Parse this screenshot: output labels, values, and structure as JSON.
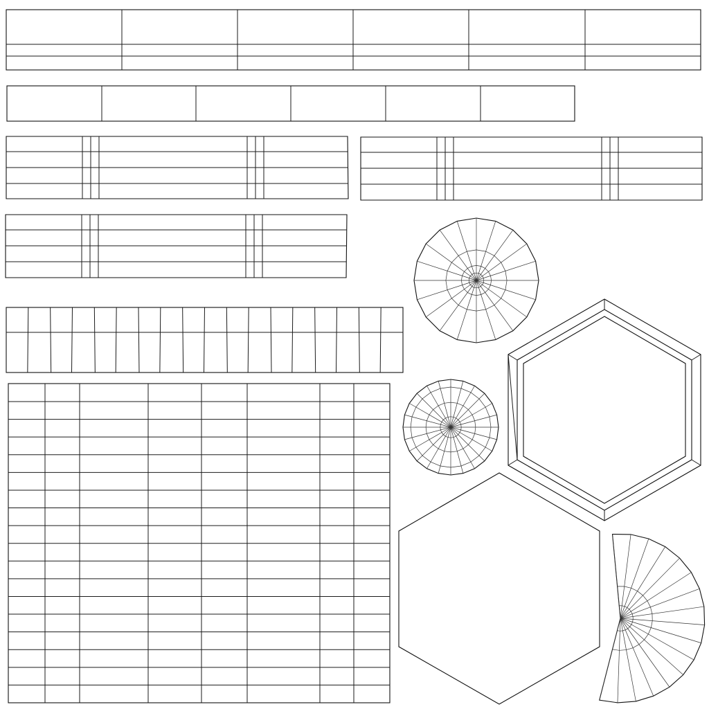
{
  "diagram": {
    "kind": "uv-wireframe-layout",
    "background_color": "#ffffff",
    "line_color": "#1a1a1a",
    "labels": []
  },
  "counts": {
    "strip_top_columns": 6,
    "strip_second_columns": 6,
    "banded_panels": 3,
    "ribbed_strip_columns": 18,
    "grid_panel_columns": 8,
    "grid_panel_rows": 18,
    "radial_discs": 2,
    "disc_large_segments": 20,
    "disc_small_segments": 24,
    "hexagon_frame": 1,
    "hexagon_plain": 1,
    "fan_segments": 16
  }
}
